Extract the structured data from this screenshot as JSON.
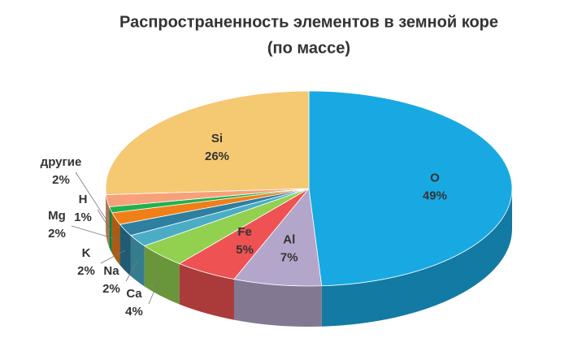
{
  "chart_data": {
    "type": "pie3d",
    "title": "Распространенность элементов в земной коре",
    "subtitle": "(по массе)",
    "categories": [
      "O",
      "Al",
      "Fe",
      "Ca",
      "Na",
      "K",
      "Mg",
      "H",
      "другие",
      "Si"
    ],
    "values": [
      49,
      7,
      5,
      4,
      2,
      2,
      2,
      1,
      2,
      26
    ],
    "value_labels": [
      "49%",
      "7%",
      "5%",
      "4%",
      "2%",
      "2%",
      "2%",
      "1%",
      "2%",
      "26%"
    ],
    "colors": [
      "#19a9e2",
      "#b4a6cb",
      "#ee5252",
      "#92d050",
      "#4bacc6",
      "#2e7fa0",
      "#f07f1a",
      "#22b14c",
      "#f7a07a",
      "#f5c872"
    ]
  }
}
